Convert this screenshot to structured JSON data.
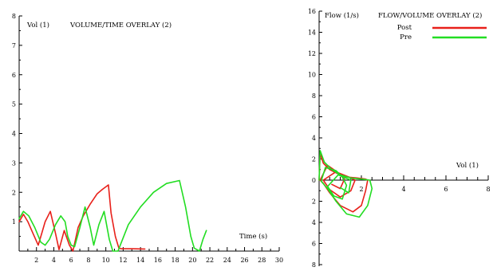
{
  "chart_data": [
    {
      "type": "line",
      "title": "VOLUME/TIME OVERLAY (2)",
      "ylabel": "Vol (1)",
      "xlabel": "Time (s)",
      "xlim": [
        0,
        30
      ],
      "ylim": [
        0,
        8
      ],
      "x_ticks": [
        "2",
        "4",
        "6",
        "8",
        "10",
        "12",
        "14",
        "16",
        "18",
        "20",
        "22",
        "24",
        "26",
        "28",
        "30"
      ],
      "y_ticks": [
        "1",
        "2",
        "3",
        "4",
        "5",
        "6",
        "7",
        "8"
      ],
      "series": [
        {
          "color": "#e8201a",
          "points": [
            [
              0,
              1.0
            ],
            [
              0.5,
              1.25
            ],
            [
              1,
              1.0
            ],
            [
              1.6,
              0.6
            ],
            [
              2.2,
              0.2
            ],
            [
              2.6,
              0.6
            ],
            [
              3,
              1.0
            ],
            [
              3.6,
              1.35
            ],
            [
              4.2,
              0.6
            ],
            [
              4.6,
              0.05
            ],
            [
              5.2,
              0.7
            ],
            [
              5.8,
              0.2
            ],
            [
              6.2,
              0.0
            ],
            [
              6.8,
              0.8
            ],
            [
              7.4,
              1.2
            ],
            [
              8.2,
              1.6
            ],
            [
              9,
              1.95
            ],
            [
              9.6,
              2.1
            ],
            [
              10.3,
              2.25
            ],
            [
              10.6,
              1.3
            ],
            [
              11.1,
              0.5
            ],
            [
              11.5,
              0.1
            ],
            [
              11.8,
              0.08
            ],
            [
              13,
              0.08
            ],
            [
              14.5,
              0.07
            ]
          ]
        },
        {
          "color": "#22dd22",
          "points": [
            [
              0,
              1.1
            ],
            [
              0.5,
              1.35
            ],
            [
              1.1,
              1.2
            ],
            [
              1.8,
              0.8
            ],
            [
              2.5,
              0.3
            ],
            [
              3,
              0.2
            ],
            [
              3.5,
              0.4
            ],
            [
              4.2,
              0.9
            ],
            [
              4.8,
              1.2
            ],
            [
              5.3,
              1.0
            ],
            [
              5.6,
              0.5
            ],
            [
              6,
              0.2
            ],
            [
              6.4,
              0.15
            ],
            [
              7,
              0.8
            ],
            [
              7.6,
              1.5
            ],
            [
              8.2,
              0.8
            ],
            [
              8.6,
              0.2
            ],
            [
              9.2,
              0.9
            ],
            [
              9.8,
              1.35
            ],
            [
              10.4,
              0.4
            ],
            [
              10.8,
              0.0
            ],
            [
              11.4,
              0.0
            ],
            [
              11.8,
              0.3
            ],
            [
              12.6,
              0.9
            ],
            [
              14,
              1.5
            ],
            [
              15.5,
              2.0
            ],
            [
              17,
              2.3
            ],
            [
              18.5,
              2.4
            ],
            [
              19.2,
              1.5
            ],
            [
              19.8,
              0.5
            ],
            [
              20.2,
              0.1
            ],
            [
              20.8,
              0.0
            ],
            [
              21.2,
              0.4
            ],
            [
              21.6,
              0.7
            ]
          ]
        }
      ]
    },
    {
      "type": "line",
      "title": "FLOW/VOLUME OVERLAY (2)",
      "ylabel": "Flow (1/s)",
      "xlabel": "Vol (1)",
      "xlim": [
        0,
        8
      ],
      "ylim": [
        -8,
        16
      ],
      "x_ticks": [
        "2",
        "4",
        "6",
        "8"
      ],
      "y_ticks_pos": [
        "2",
        "4",
        "6",
        "8",
        "10",
        "12",
        "14",
        "16"
      ],
      "y_ticks_neg": [
        "2",
        "4",
        "6",
        "8"
      ],
      "origin_label": "0",
      "legend": [
        {
          "label": "Post",
          "color": "#e8201a"
        },
        {
          "label": "Pre",
          "color": "#22dd22"
        }
      ],
      "legend_position": "top-right",
      "series": [
        {
          "name": "Post",
          "color": "#e8201a",
          "points": [
            [
              0,
              0
            ],
            [
              0.05,
              2.5
            ],
            [
              0.2,
              1.6
            ],
            [
              0.5,
              1.0
            ],
            [
              0.9,
              0.6
            ],
            [
              1.3,
              0.3
            ],
            [
              1.8,
              0.2
            ],
            [
              2.2,
              0.1
            ],
            [
              2.3,
              0.0
            ],
            [
              2.2,
              -1.0
            ],
            [
              2.0,
              -2.4
            ],
            [
              1.6,
              -3.0
            ],
            [
              1.0,
              -2.4
            ],
            [
              0.5,
              -1.2
            ],
            [
              0.2,
              -0.3
            ],
            [
              0.05,
              0
            ],
            [
              0.4,
              1.4
            ],
            [
              0.9,
              0.7
            ],
            [
              1.4,
              0.3
            ],
            [
              1.7,
              0.0
            ],
            [
              1.5,
              -1.0
            ],
            [
              1.0,
              -1.6
            ],
            [
              0.5,
              -0.9
            ],
            [
              0.2,
              0
            ],
            [
              0.8,
              0.8
            ],
            [
              1.2,
              0.1
            ],
            [
              1.0,
              -0.8
            ],
            [
              0.6,
              -0.4
            ]
          ]
        },
        {
          "name": "Pre",
          "color": "#22dd22",
          "points": [
            [
              0,
              0
            ],
            [
              0.05,
              2.8
            ],
            [
              0.25,
              1.7
            ],
            [
              0.6,
              1.0
            ],
            [
              1.0,
              0.5
            ],
            [
              1.5,
              0.2
            ],
            [
              2.0,
              0.1
            ],
            [
              2.4,
              0.0
            ],
            [
              2.5,
              -0.8
            ],
            [
              2.3,
              -2.4
            ],
            [
              1.9,
              -3.5
            ],
            [
              1.3,
              -3.2
            ],
            [
              0.8,
              -2.0
            ],
            [
              0.4,
              -0.8
            ],
            [
              0.1,
              -0.1
            ],
            [
              0.3,
              1.2
            ],
            [
              0.8,
              0.9
            ],
            [
              1.1,
              0.3
            ],
            [
              1.3,
              -0.5
            ],
            [
              1.1,
              -1.8
            ],
            [
              0.7,
              -1.5
            ],
            [
              0.4,
              -0.6
            ],
            [
              0.9,
              0.5
            ],
            [
              1.5,
              0.0
            ],
            [
              1.4,
              -1.2
            ],
            [
              1.0,
              -0.7
            ]
          ]
        }
      ]
    }
  ]
}
